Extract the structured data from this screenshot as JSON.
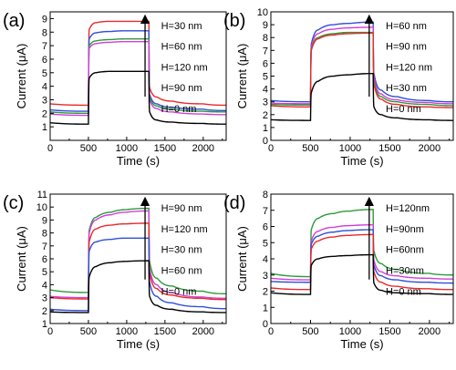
{
  "chart_data": [
    {
      "type": "line",
      "panel_label": "(a)",
      "xlabel": "Time (s)",
      "ylabel": "Current (μA)",
      "xlim": [
        0,
        2300
      ],
      "ylim": [
        0,
        9.5
      ],
      "xticks": [
        0,
        500,
        1000,
        1500,
        2000
      ],
      "yticks": [
        1,
        2,
        3,
        4,
        5,
        6,
        7,
        8,
        9
      ],
      "grid": false,
      "legend": [
        "H=30 nm",
        "H=60 nm",
        "H=120 nm",
        "H=90 nm",
        "H=0 nm"
      ],
      "arrow": "up",
      "series": [
        {
          "name": "H=30 nm",
          "color": "#e8292c",
          "x": [
            0,
            500,
            510,
            600,
            800,
            1000,
            1290,
            1300,
            1400,
            1600,
            2000,
            2300
          ],
          "y": [
            2.7,
            2.6,
            8.2,
            8.7,
            8.8,
            8.8,
            8.8,
            3.9,
            3.2,
            2.9,
            2.7,
            2.6
          ]
        },
        {
          "name": "H=60 nm",
          "color": "#2f4fd8",
          "x": [
            0,
            500,
            510,
            600,
            800,
            1000,
            1290,
            1300,
            1400,
            1600,
            2000,
            2300
          ],
          "y": [
            2.25,
            2.15,
            7.5,
            7.95,
            8.05,
            8.1,
            8.1,
            3.4,
            2.7,
            2.45,
            2.3,
            2.2
          ]
        },
        {
          "name": "H=120 nm",
          "color": "#2c9a3a",
          "x": [
            0,
            500,
            510,
            600,
            800,
            1000,
            1290,
            1300,
            1400,
            1600,
            2000,
            2300
          ],
          "y": [
            2.1,
            2.0,
            7.0,
            7.35,
            7.45,
            7.5,
            7.5,
            3.2,
            2.55,
            2.3,
            2.15,
            2.1
          ]
        },
        {
          "name": "H=90 nm",
          "color": "#d23ed8",
          "x": [
            0,
            500,
            510,
            600,
            800,
            1000,
            1290,
            1300,
            1400,
            1600,
            2000,
            2300
          ],
          "y": [
            1.95,
            1.85,
            6.8,
            7.15,
            7.25,
            7.3,
            7.3,
            3.0,
            2.35,
            2.1,
            1.95,
            1.9
          ]
        },
        {
          "name": "H=0 nm",
          "color": "#000000",
          "x": [
            0,
            500,
            510,
            600,
            800,
            1000,
            1290,
            1300,
            1400,
            1600,
            2000,
            2300
          ],
          "y": [
            1.3,
            1.2,
            4.6,
            5.0,
            5.1,
            5.1,
            5.1,
            2.1,
            1.5,
            1.35,
            1.25,
            1.2
          ]
        }
      ]
    },
    {
      "type": "line",
      "panel_label": "(b)",
      "xlabel": "Time (s)",
      "ylabel": "Current (μA)",
      "xlim": [
        0,
        2300
      ],
      "ylim": [
        0,
        10
      ],
      "xticks": [
        0,
        500,
        1000,
        1500,
        2000
      ],
      "yticks": [
        0,
        1,
        2,
        3,
        4,
        5,
        6,
        7,
        8,
        9,
        10
      ],
      "grid": false,
      "legend": [
        "H=60 nm",
        "H=90 nm",
        "H=120 nm",
        "H=30 nm",
        "H=0 nm"
      ],
      "arrow": "up",
      "series": [
        {
          "name": "H=60 nm",
          "color": "#2f4fd8",
          "x": [
            0,
            500,
            510,
            600,
            800,
            1000,
            1290,
            1300,
            1400,
            1600,
            2000,
            2300
          ],
          "y": [
            3.1,
            3.0,
            7.5,
            8.6,
            9.0,
            9.1,
            9.2,
            5.2,
            3.9,
            3.4,
            3.1,
            3.0
          ]
        },
        {
          "name": "H=90 nm",
          "color": "#d23ed8",
          "x": [
            0,
            500,
            510,
            600,
            800,
            1000,
            1290,
            1300,
            1400,
            1600,
            2000,
            2300
          ],
          "y": [
            2.9,
            2.85,
            7.3,
            8.3,
            8.65,
            8.75,
            8.8,
            4.9,
            3.6,
            3.15,
            2.95,
            2.85
          ]
        },
        {
          "name": "H=120 nm",
          "color": "#2c9a3a",
          "x": [
            0,
            500,
            510,
            600,
            800,
            1000,
            1290,
            1300,
            1400,
            1600,
            2000,
            2300
          ],
          "y": [
            2.8,
            2.75,
            7.1,
            8.0,
            8.3,
            8.4,
            8.4,
            4.6,
            3.4,
            3.0,
            2.8,
            2.7
          ]
        },
        {
          "name": "H=30 nm",
          "color": "#e8292c",
          "x": [
            0,
            500,
            510,
            600,
            800,
            1000,
            1290,
            1300,
            1400,
            1600,
            2000,
            2300
          ],
          "y": [
            2.7,
            2.6,
            7.0,
            7.9,
            8.2,
            8.3,
            8.35,
            4.4,
            3.2,
            2.8,
            2.6,
            2.55
          ]
        },
        {
          "name": "H=0 nm",
          "color": "#000000",
          "x": [
            0,
            500,
            510,
            600,
            800,
            1000,
            1290,
            1300,
            1400,
            1600,
            2000,
            2300
          ],
          "y": [
            1.6,
            1.55,
            3.7,
            4.6,
            5.0,
            5.1,
            5.2,
            2.6,
            2.0,
            1.75,
            1.6,
            1.55
          ]
        }
      ]
    },
    {
      "type": "line",
      "panel_label": "(c)",
      "xlabel": "Time (s)",
      "ylabel": "Current (μA)",
      "xlim": [
        0,
        2300
      ],
      "ylim": [
        1,
        11
      ],
      "xticks": [
        0,
        500,
        1000,
        1500,
        2000
      ],
      "yticks": [
        1,
        2,
        3,
        4,
        5,
        6,
        7,
        8,
        9,
        10,
        11
      ],
      "grid": false,
      "legend": [
        "H=90 nm",
        "H=120 nm",
        "H=30 nm",
        "H=60 nm",
        "H=0 nm"
      ],
      "arrow": "up",
      "series": [
        {
          "name": "H=90 nm",
          "color": "#2c9a3a",
          "x": [
            0,
            500,
            510,
            600,
            800,
            1000,
            1290,
            1300,
            1400,
            1600,
            2000,
            2300
          ],
          "y": [
            3.6,
            3.4,
            8.2,
            9.2,
            9.6,
            9.8,
            9.9,
            5.8,
            4.5,
            3.9,
            3.5,
            3.3
          ]
        },
        {
          "name": "H=120 nm",
          "color": "#d23ed8",
          "x": [
            0,
            500,
            510,
            600,
            800,
            1000,
            1290,
            1300,
            1400,
            1600,
            2000,
            2300
          ],
          "y": [
            3.1,
            3.0,
            8.0,
            9.0,
            9.4,
            9.6,
            9.7,
            5.3,
            4.0,
            3.4,
            3.05,
            2.95
          ]
        },
        {
          "name": "H=30 nm",
          "color": "#e8292c",
          "x": [
            0,
            500,
            510,
            600,
            800,
            1000,
            1290,
            1300,
            1400,
            1600,
            2000,
            2300
          ],
          "y": [
            3.0,
            2.9,
            7.3,
            8.3,
            8.6,
            8.7,
            8.75,
            4.9,
            3.7,
            3.2,
            2.95,
            2.85
          ]
        },
        {
          "name": "H=60 nm",
          "color": "#2f4fd8",
          "x": [
            0,
            500,
            510,
            600,
            800,
            1000,
            1290,
            1300,
            1400,
            1600,
            2000,
            2300
          ],
          "y": [
            2.1,
            2.0,
            6.6,
            7.3,
            7.5,
            7.6,
            7.6,
            4.2,
            3.1,
            2.6,
            2.3,
            2.15
          ]
        },
        {
          "name": "H=0 nm",
          "color": "#000000",
          "x": [
            0,
            500,
            510,
            600,
            800,
            1000,
            1290,
            1300,
            1400,
            1600,
            2000,
            2300
          ],
          "y": [
            1.9,
            1.85,
            4.6,
            5.4,
            5.7,
            5.8,
            5.85,
            3.1,
            2.4,
            2.1,
            1.9,
            1.85
          ]
        }
      ]
    },
    {
      "type": "line",
      "panel_label": "(d)",
      "xlabel": "Time (s)",
      "ylabel": "Current (μA)",
      "xlim": [
        0,
        2300
      ],
      "ylim": [
        0,
        8
      ],
      "xticks": [
        0,
        500,
        1000,
        1500,
        2000
      ],
      "yticks": [
        0,
        1,
        2,
        3,
        4,
        5,
        6,
        7,
        8
      ],
      "grid": false,
      "legend": [
        "H=120nm",
        "H=90nm",
        "H=60nm",
        "H=30nm",
        "H=0 nm"
      ],
      "arrow": "up",
      "series": [
        {
          "name": "H=120nm",
          "color": "#2c9a3a",
          "x": [
            0,
            500,
            510,
            600,
            800,
            1000,
            1290,
            1300,
            1400,
            1600,
            2000,
            2300
          ],
          "y": [
            3.1,
            2.9,
            5.8,
            6.5,
            6.8,
            6.95,
            7.05,
            4.5,
            3.7,
            3.35,
            3.1,
            3.0
          ]
        },
        {
          "name": "H=90nm",
          "color": "#d23ed8",
          "x": [
            0,
            500,
            510,
            600,
            800,
            1000,
            1290,
            1300,
            1400,
            1600,
            2000,
            2300
          ],
          "y": [
            2.8,
            2.7,
            5.1,
            5.7,
            5.95,
            6.05,
            6.1,
            3.9,
            3.2,
            2.95,
            2.8,
            2.75
          ]
        },
        {
          "name": "H=60nm",
          "color": "#2f4fd8",
          "x": [
            0,
            500,
            510,
            600,
            800,
            1000,
            1290,
            1300,
            1400,
            1600,
            2000,
            2300
          ],
          "y": [
            2.6,
            2.55,
            4.9,
            5.4,
            5.65,
            5.75,
            5.8,
            3.6,
            2.95,
            2.7,
            2.55,
            2.5
          ]
        },
        {
          "name": "H=30nm",
          "color": "#e8292c",
          "x": [
            0,
            500,
            510,
            600,
            800,
            1000,
            1290,
            1300,
            1400,
            1600,
            2000,
            2300
          ],
          "y": [
            2.2,
            2.1,
            4.6,
            5.1,
            5.35,
            5.45,
            5.5,
            3.2,
            2.55,
            2.3,
            2.15,
            2.1
          ]
        },
        {
          "name": "H=0 nm",
          "color": "#000000",
          "x": [
            0,
            500,
            510,
            600,
            800,
            1000,
            1290,
            1300,
            1400,
            1600,
            2000,
            2300
          ],
          "y": [
            1.9,
            1.8,
            3.6,
            4.0,
            4.15,
            4.2,
            4.25,
            2.5,
            2.05,
            1.9,
            1.85,
            1.8
          ]
        }
      ]
    }
  ]
}
